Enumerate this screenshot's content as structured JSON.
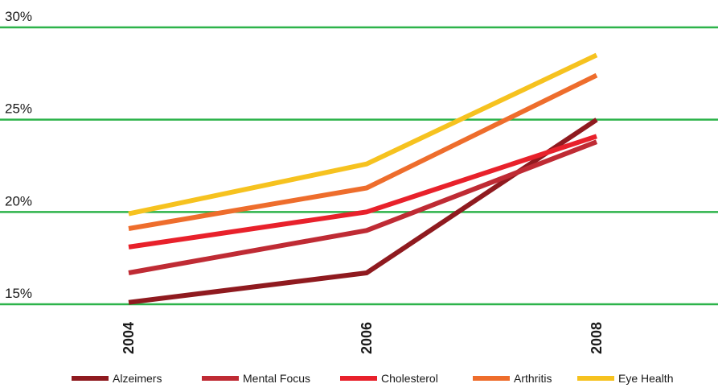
{
  "chart_data": {
    "type": "line",
    "title": "",
    "xlabel": "",
    "ylabel": "",
    "x": [
      "2004",
      "2006",
      "2008"
    ],
    "y_ticks": [
      "15%",
      "20%",
      "25%",
      "30%"
    ],
    "y_tick_values": [
      15,
      20,
      25,
      30
    ],
    "ylim": [
      15,
      30
    ],
    "grid": "horizontal",
    "grid_color": "#2db34a",
    "legend_position": "bottom",
    "series": [
      {
        "name": "Alzeimers",
        "color": "#8f1a1f",
        "values": [
          15.1,
          16.7,
          25.0
        ]
      },
      {
        "name": "Mental Focus",
        "color": "#bf2b34",
        "values": [
          16.7,
          19.0,
          23.8
        ]
      },
      {
        "name": "Cholesterol",
        "color": "#e8212b",
        "values": [
          18.1,
          20.0,
          24.1
        ]
      },
      {
        "name": "Arthritis",
        "color": "#ee6d2c",
        "values": [
          19.1,
          21.3,
          27.4
        ]
      },
      {
        "name": "Eye Health",
        "color": "#f6c21f",
        "values": [
          19.9,
          22.6,
          28.5
        ]
      }
    ]
  }
}
